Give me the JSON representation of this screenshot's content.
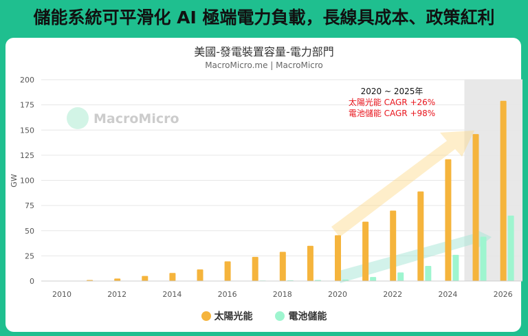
{
  "headline": "儲能系統可平滑化 AI 極端電力負載，長線具成本、政策紅利",
  "watermark": "MacroMicro",
  "chart_data": {
    "type": "bar",
    "title": "美國-發電裝置容量-電力部門",
    "subtitle": "MacroMicro.me | MacroMicro",
    "ylabel": "GW",
    "xlabel": "",
    "ylim": [
      0,
      200
    ],
    "yticks": [
      0,
      25,
      50,
      75,
      100,
      125,
      150,
      175,
      200
    ],
    "xticks": [
      2010,
      2012,
      2014,
      2016,
      2018,
      2020,
      2022,
      2024,
      2026
    ],
    "categories": [
      2010,
      2011,
      2012,
      2013,
      2014,
      2015,
      2016,
      2017,
      2018,
      2019,
      2020,
      2021,
      2022,
      2023,
      2024,
      2025,
      2026
    ],
    "grid": true,
    "legend_position": "bottom",
    "shaded_region": [
      2024.6,
      2026.5
    ],
    "series": [
      {
        "name": "太陽光能",
        "color": "#f5b43c",
        "values": [
          0,
          1,
          2.5,
          5,
          8,
          11.5,
          19.5,
          24,
          29,
          35,
          45.5,
          59,
          70,
          89,
          121,
          146,
          179
        ]
      },
      {
        "name": "電池儲能",
        "color": "#9ef5cf",
        "values": [
          0,
          0,
          0,
          0,
          0,
          0,
          0.3,
          0.5,
          0.8,
          1,
          1.5,
          4,
          8.5,
          15,
          26,
          44,
          65
        ]
      }
    ],
    "annotation": {
      "period": "2020 ~ 2025年",
      "lines": [
        "太陽光能 CAGR +26%",
        "電池儲能 CAGR +98%"
      ],
      "color": "#e8141c"
    }
  }
}
